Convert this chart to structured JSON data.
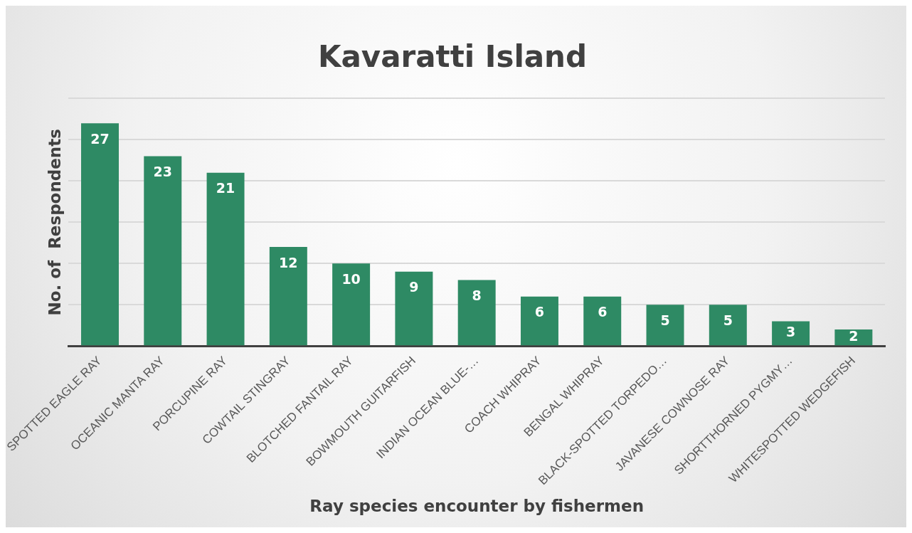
{
  "chart_data": {
    "type": "bar",
    "title": "Kavaratti Island",
    "xlabel": "Ray species encounter by fishermen",
    "ylabel": "No. of  Respondents",
    "categories": [
      "SPOTTED EAGLE RAY",
      "OCEANIC MANTA RAY",
      "PORCUPINE RAY",
      "COWTAIL STINGRAY",
      "BLOTCHED FANTAIL RAY",
      "BOWMOUTH GUITARFISH",
      "INDIAN OCEAN BLUE-…",
      "COACH WHIPRAY",
      "BENGAL WHIPRAY",
      "BLACK-SPOTTED TORPEDO…",
      "JAVANESE COWNOSE RAY",
      "SHORTTHORNED PYGMY…",
      "WHITESPOTTED WEDGEFISH"
    ],
    "values": [
      27,
      23,
      21,
      12,
      10,
      9,
      8,
      6,
      6,
      5,
      5,
      3,
      2
    ],
    "color": "#2e8a64",
    "ylim": [
      0,
      30
    ],
    "yticks": [
      {
        "value": 0,
        "label": null
      },
      {
        "value": 5,
        "label": null
      },
      {
        "value": 10,
        "label": null
      },
      {
        "value": 15,
        "label": null
      },
      {
        "value": 20,
        "label": null
      },
      {
        "value": 25,
        "label": null
      },
      {
        "value": 30,
        "label": null
      }
    ],
    "grid": "y",
    "tick_labels": "x",
    "data_labels": true,
    "legend": false
  }
}
